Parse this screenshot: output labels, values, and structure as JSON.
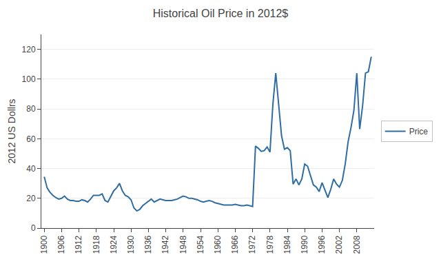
{
  "chart_data": {
    "type": "line",
    "title": "Historical Oil Price in 2012$",
    "ylabel": "2012 US Dollrs",
    "x": [
      1900,
      1901,
      1902,
      1903,
      1904,
      1905,
      1906,
      1907,
      1908,
      1909,
      1910,
      1911,
      1912,
      1913,
      1914,
      1915,
      1916,
      1917,
      1918,
      1919,
      1920,
      1921,
      1922,
      1923,
      1924,
      1925,
      1926,
      1927,
      1928,
      1929,
      1930,
      1931,
      1932,
      1933,
      1934,
      1935,
      1936,
      1937,
      1938,
      1939,
      1940,
      1941,
      1942,
      1943,
      1944,
      1945,
      1946,
      1947,
      1948,
      1949,
      1950,
      1951,
      1952,
      1953,
      1954,
      1955,
      1956,
      1957,
      1958,
      1959,
      1960,
      1961,
      1962,
      1963,
      1964,
      1965,
      1966,
      1967,
      1968,
      1969,
      1970,
      1971,
      1972,
      1973,
      1974,
      1975,
      1976,
      1977,
      1978,
      1979,
      1980,
      1981,
      1982,
      1983,
      1984,
      1985,
      1986,
      1987,
      1988,
      1989,
      1990,
      1991,
      1992,
      1993,
      1994,
      1995,
      1996,
      1997,
      1998,
      1999,
      2000,
      2001,
      2002,
      2003,
      2004,
      2005,
      2006,
      2007,
      2008,
      2009,
      2010,
      2011,
      2012,
      2013
    ],
    "series": [
      {
        "name": "Price",
        "color": "#2E6DA4",
        "values": [
          34.5,
          27.0,
          24.0,
          22.0,
          20.5,
          19.5,
          20.0,
          21.5,
          19.5,
          18.5,
          18.5,
          18.0,
          18.0,
          19.0,
          18.5,
          17.5,
          19.5,
          22.0,
          22.0,
          22.0,
          23.0,
          18.5,
          17.5,
          21.0,
          25.0,
          27.0,
          30.0,
          25.0,
          22.0,
          21.0,
          19.0,
          13.5,
          11.5,
          12.5,
          15.0,
          16.5,
          18.0,
          19.5,
          17.5,
          18.5,
          19.5,
          19.0,
          18.5,
          18.5,
          18.5,
          19.0,
          19.5,
          20.5,
          21.5,
          21.0,
          20.0,
          20.0,
          19.5,
          19.0,
          18.0,
          17.5,
          18.0,
          18.5,
          18.0,
          17.0,
          16.5,
          16.0,
          15.5,
          15.5,
          15.5,
          15.5,
          16.0,
          15.5,
          15.0,
          15.0,
          15.5,
          15.0,
          14.5,
          55.0,
          53.5,
          51.5,
          52.0,
          54.5,
          51.0,
          83.0,
          104.0,
          83.0,
          62.0,
          53.0,
          54.0,
          52.0,
          29.5,
          33.0,
          29.0,
          33.0,
          43.0,
          41.5,
          35.0,
          29.0,
          27.5,
          24.5,
          30.5,
          25.0,
          20.5,
          26.0,
          33.0,
          29.5,
          27.5,
          32.0,
          43.0,
          58.0,
          67.5,
          79.0,
          104.0,
          66.5,
          82.0,
          104.0,
          105.0,
          115.0
        ]
      }
    ],
    "xlim": [
      1899,
      2014
    ],
    "xticks": [
      1900,
      1906,
      1912,
      1918,
      1924,
      1930,
      1936,
      1942,
      1948,
      1954,
      1960,
      1966,
      1972,
      1978,
      1984,
      1990,
      1996,
      2002,
      2008
    ],
    "ylim": [
      0,
      130
    ],
    "yticks": [
      0,
      20,
      40,
      60,
      80,
      100,
      120
    ],
    "grid": "y",
    "legend": "right"
  }
}
